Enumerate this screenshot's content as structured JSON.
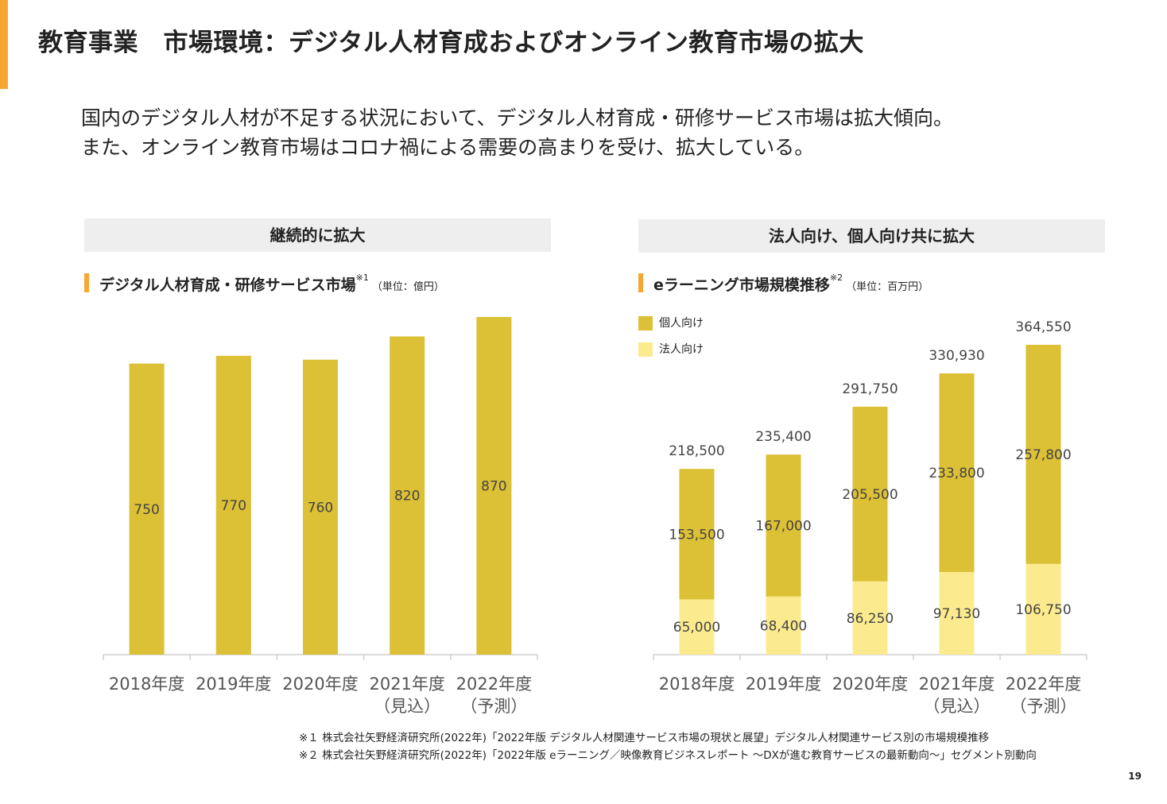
{
  "title": "教育事業　市場環境：デジタル人材育成およびオンライン教育市場の拡大",
  "lead": {
    "line1": "国内のデジタル人材が不足する状況において、デジタル人材育成・研修サービス市場は拡大傾向。",
    "line2": "また、オンライン教育市場はコロナ禍による需要の高まりを受け、拡大している。"
  },
  "left_panel": {
    "heading": "継続的に拡大",
    "subtitle": "デジタル人材育成・研修サービス市場",
    "note_mark": "※1",
    "unit": "（単位：億円）"
  },
  "right_panel": {
    "heading": "法人向け、個人向け共に拡大",
    "subtitle": "eラーニング市場規模推移",
    "note_mark": "※2",
    "unit": "（単位：百万円）",
    "legend": [
      {
        "label": "個人向け",
        "color": "#dcc035"
      },
      {
        "label": "法人向け",
        "color": "#fceb8e"
      }
    ]
  },
  "chart_data": [
    {
      "type": "bar",
      "categories": [
        [
          "2018年度"
        ],
        [
          "2019年度"
        ],
        [
          "2020年度"
        ],
        [
          "2021年度",
          "（見込）"
        ],
        [
          "2022年度",
          "（予測）"
        ]
      ],
      "values": [
        750,
        770,
        760,
        820,
        870
      ],
      "color": "#dcc035",
      "ylim": [
        0,
        870
      ]
    },
    {
      "type": "bar",
      "stacked": true,
      "categories": [
        [
          "2018年度"
        ],
        [
          "2019年度"
        ],
        [
          "2020年度"
        ],
        [
          "2021年度",
          "（見込）"
        ],
        [
          "2022年度",
          "（予測）"
        ]
      ],
      "series": [
        {
          "name": "法人向け",
          "values": [
            "65,000",
            "68,400",
            "86,250",
            "97,130",
            "106,750"
          ],
          "color": "#fceb8e"
        },
        {
          "name": "個人向け",
          "values": [
            "153,500",
            "167,000",
            "205,500",
            "233,800",
            "257,800"
          ],
          "color": "#dcc035"
        }
      ],
      "totals": [
        "218,500",
        "235,400",
        "291,750",
        "330,930",
        "364,550"
      ],
      "ylim": [
        0,
        364550
      ]
    }
  ],
  "footnotes": [
    "※１ 株式会社矢野経済研究所(2022年)「2022年版 デジタル人材関連サービス市場の現状と展望」デジタル人材関連サービス別の市場規模推移",
    "※２ 株式会社矢野経済研究所(2022年)「2022年版 eラーニング／映像教育ビジネスレポート ～DXが進む教育サービスの最新動向～」セグメント別動向"
  ],
  "page_number": "19"
}
